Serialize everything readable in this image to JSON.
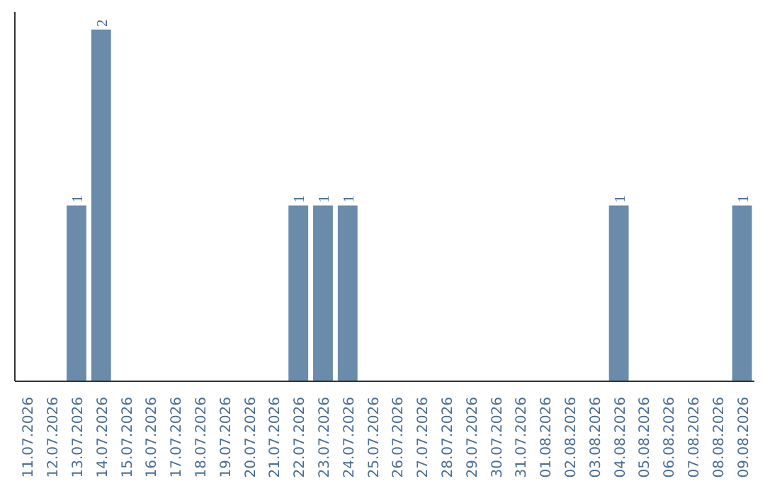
{
  "chart_data": {
    "type": "bar",
    "categories": [
      "11.07.2026",
      "12.07.2026",
      "13.07.2026",
      "14.07.2026",
      "15.07.2026",
      "16.07.2026",
      "17.07.2026",
      "18.07.2026",
      "19.07.2026",
      "20.07.2026",
      "21.07.2026",
      "22.07.2026",
      "23.07.2026",
      "24.07.2026",
      "25.07.2026",
      "26.07.2026",
      "27.07.2026",
      "28.07.2026",
      "29.07.2026",
      "30.07.2026",
      "31.07.2026",
      "01.08.2026",
      "02.08.2026",
      "03.08.2026",
      "04.08.2026",
      "05.08.2026",
      "06.08.2026",
      "07.08.2026",
      "08.08.2026",
      "09.08.2026"
    ],
    "values": [
      0,
      0,
      1,
      2,
      0,
      0,
      0,
      0,
      0,
      0,
      0,
      1,
      1,
      1,
      0,
      0,
      0,
      0,
      0,
      0,
      0,
      0,
      0,
      0,
      1,
      0,
      0,
      0,
      0,
      1
    ],
    "value_labels": [
      null,
      null,
      "1",
      "2",
      null,
      null,
      null,
      null,
      null,
      null,
      null,
      "1",
      "1",
      "1",
      null,
      null,
      null,
      null,
      null,
      null,
      null,
      null,
      null,
      null,
      "1",
      null,
      null,
      null,
      null,
      "1"
    ],
    "color": "#6b8bab",
    "grid": false,
    "tick_labels": "x"
  }
}
